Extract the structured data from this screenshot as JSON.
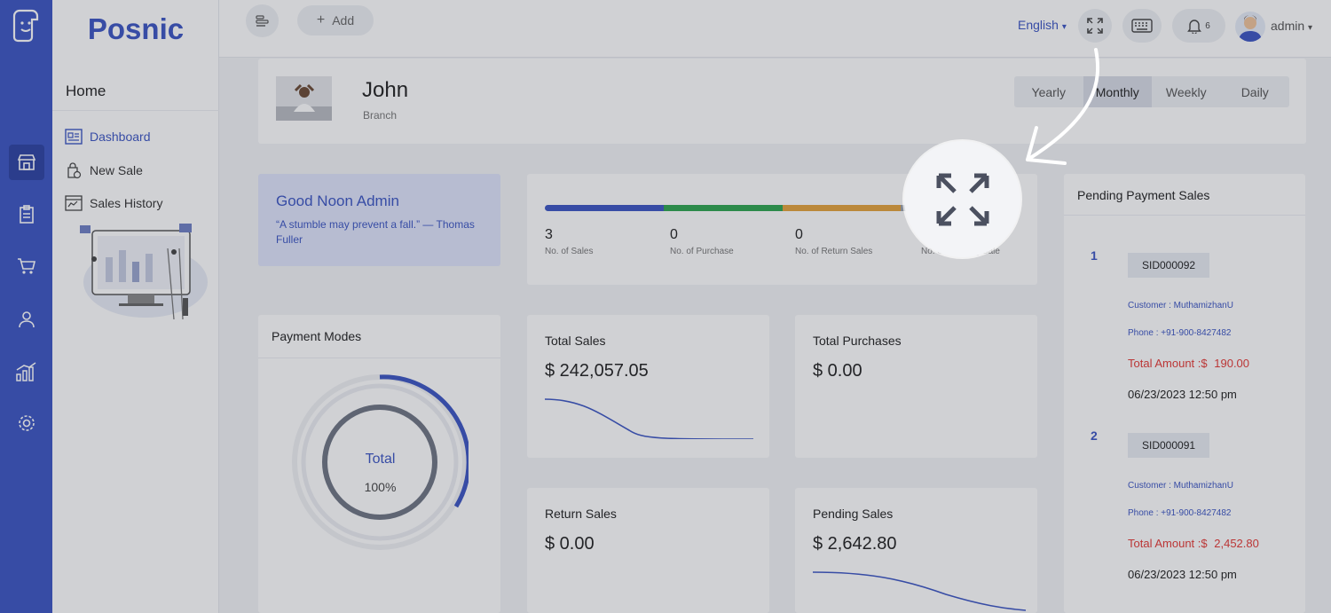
{
  "brand": {
    "name": "Posnic"
  },
  "sidebar": {
    "section_title": "Home",
    "items": [
      {
        "label": "Dashboard"
      },
      {
        "label": "New Sale"
      },
      {
        "label": "Sales History"
      }
    ]
  },
  "topbar": {
    "add_label": "Add",
    "language": "English",
    "notification_count": "6",
    "user_name": "admin"
  },
  "profile": {
    "name": "John",
    "role": "Branch",
    "periods": [
      "Yearly",
      "Monthly",
      "Weekly",
      "Daily"
    ],
    "selected_period": "Monthly"
  },
  "greeting": {
    "title": "Good Noon Admin",
    "quote": "“A stumble may prevent a fall.” — Thomas Fuller"
  },
  "stats": {
    "bar_colors": [
      "#3b55c3",
      "#2ea44f",
      "#e5a23a",
      "#9aa0ab"
    ],
    "items": [
      {
        "value": "3",
        "label": "No. of Sales"
      },
      {
        "value": "0",
        "label": "No. of Purchase"
      },
      {
        "value": "0",
        "label": "No. of Return Sales"
      },
      {
        "value": "",
        "label": "No. of Pending Sale"
      }
    ]
  },
  "payment_modes": {
    "title": "Payment Modes",
    "center_label": "Total",
    "center_value": "100%"
  },
  "summary": {
    "total_sales": {
      "title": "Total Sales",
      "value": "$ 242,057.05"
    },
    "total_purchases": {
      "title": "Total Purchases",
      "value": "$ 0.00"
    },
    "return_sales": {
      "title": "Return Sales",
      "value": "$ 0.00"
    },
    "pending_sales": {
      "title": "Pending Sales",
      "value": "$ 2,642.80"
    }
  },
  "pending": {
    "title": "Pending Payment Sales",
    "items": [
      {
        "index": "1",
        "sid": "SID000092",
        "customer": "Customer : MuthamizhanU",
        "phone": "Phone : +91-900-8427482",
        "amount_label": "Total Amount :$",
        "amount": "190.00",
        "date": "06/23/2023 12:50 pm"
      },
      {
        "index": "2",
        "sid": "SID000091",
        "customer": "Customer : MuthamizhanU",
        "phone": "Phone : +91-900-8427482",
        "amount_label": "Total Amount :$",
        "amount": "2,452.80",
        "date": "06/23/2023 12:50 pm"
      }
    ]
  },
  "colors": {
    "accent": "#3b55c3",
    "danger": "#e53935"
  }
}
